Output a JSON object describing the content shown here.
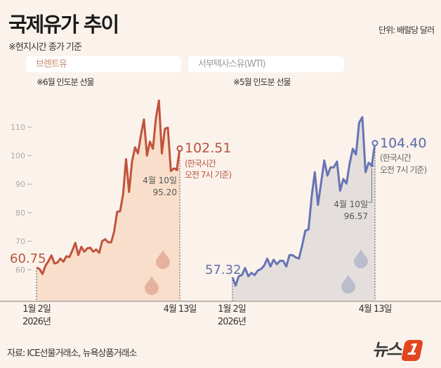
{
  "header": {
    "title": "국제유가 추이",
    "subtitle": "※현지시간 종가 기준",
    "unit": "단위: 배럴당 달러"
  },
  "footer": {
    "source": "자료: ICE선물거래소, 뉴욕상품거래소",
    "logo": "뉴스1"
  },
  "colors": {
    "background": "#fbf2ec",
    "brent_line": "#c0533c",
    "brent_fill": "#f9dfcb",
    "wti_line": "#6774b4",
    "wti_fill": "#e4dfdc"
  },
  "chart_data": [
    {
      "type": "area",
      "title": "브렌트유",
      "note": "※6월 인도분 선물",
      "x_labels": [
        {
          "date": "1월 2일",
          "year": "2026년"
        },
        {
          "date": "4월 13일",
          "year": ""
        }
      ],
      "yticks": [
        60,
        70,
        80,
        90,
        100,
        110
      ],
      "ylim": [
        55,
        120
      ],
      "grid": false,
      "values": [
        60.75,
        60.2,
        58.5,
        61.4,
        63,
        65,
        62.2,
        62.5,
        63.9,
        62.8,
        64.7,
        64.4,
        66.7,
        69.4,
        65.1,
        68,
        66.3,
        67.5,
        67.7,
        66.3,
        67.1,
        65.9,
        70,
        70.7,
        69.6,
        69.6,
        73.3,
        80.3,
        80.5,
        86.4,
        98.8,
        87.3,
        97.9,
        102.9,
        100.8,
        107.4,
        112.7,
        100,
        104.9,
        102.4,
        113.1,
        119.3,
        100.8,
        109.4,
        109.8,
        94.6,
        95.5,
        95.2,
        102.51
      ],
      "start_label": "60.75",
      "end_label": "102.51",
      "end_note": [
        "(한국시간",
        "오전 7시 기준)"
      ],
      "callout": {
        "date": "4월 10일",
        "value": "95.20"
      }
    },
    {
      "type": "area",
      "title": "서부텍사스유(WTI)",
      "note": "※5월 인도분 선물",
      "x_labels": [
        {
          "date": "1월 2일",
          "year": "2026년"
        },
        {
          "date": "4월 13일",
          "year": ""
        }
      ],
      "ylim": [
        55,
        120
      ],
      "grid": false,
      "values": [
        57.32,
        54.4,
        57.7,
        58.1,
        60.6,
        57.7,
        58.9,
        58.1,
        59.7,
        60.2,
        61.4,
        63.9,
        61.1,
        63.5,
        61.9,
        63.1,
        63.1,
        61.1,
        65.1,
        65.1,
        64.3,
        63.9,
        68.4,
        73.7,
        74.1,
        85.6,
        94.2,
        82.7,
        90.5,
        98.3,
        93,
        95.9,
        95.9,
        97.9,
        87.7,
        91.8,
        90.2,
        97.2,
        102.4,
        100.4,
        111.5,
        113.5,
        94.2,
        97.5,
        96.57,
        104.4
      ],
      "start_label": "57.32",
      "end_label": "104.40",
      "end_note": [
        "(한국시간",
        "오전 7시 기준)"
      ],
      "callout": {
        "date": "4월 10일",
        "value": "96.57"
      }
    }
  ]
}
